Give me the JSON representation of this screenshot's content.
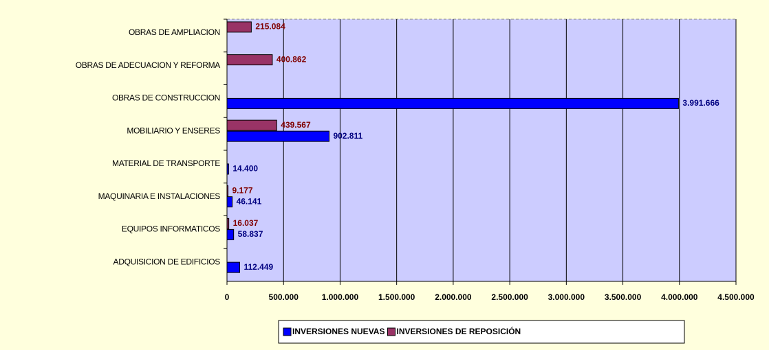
{
  "chart_data": {
    "type": "bar",
    "orientation": "horizontal",
    "categories": [
      "OBRAS DE AMPLIACION",
      "OBRAS DE ADECUACION Y REFORMA",
      "OBRAS DE CONSTRUCCION",
      "MOBILIARIO Y ENSERES",
      "MATERIAL DE TRANSPORTE",
      "MAQUINARIA E INSTALACIONES",
      "EQUIPOS INFORMATICOS",
      "ADQUISICION DE EDIFICIOS"
    ],
    "series": [
      {
        "name": "INVERSIONES NUEVAS",
        "color": "#0000ff",
        "label_color": "#000080",
        "values": [
          null,
          null,
          3991666,
          902811,
          14400,
          46141,
          58837,
          112449
        ],
        "value_labels": [
          null,
          null,
          "3.991.666",
          "902.811",
          "14.400",
          "46.141",
          "58.837",
          "112.449"
        ]
      },
      {
        "name": "INVERSIONES DE REPOSICIÓN",
        "color": "#993366",
        "label_color": "#800000",
        "values": [
          215084,
          400862,
          null,
          439567,
          null,
          9177,
          16037,
          null
        ],
        "value_labels": [
          "215.084",
          "400.862",
          null,
          "439.567",
          null,
          "9.177",
          "16.037",
          null
        ]
      }
    ],
    "xlim": [
      0,
      4500000
    ],
    "xticks": [
      0,
      {
        "value": 500000,
        "label": "500.000"
      },
      {
        "value": 1000000,
        "label": "1.000.000"
      },
      {
        "value": 1500000,
        "label": "1.500.000"
      },
      {
        "value": 2000000,
        "label": "2.000.000"
      },
      {
        "value": 2500000,
        "label": "2.500.000"
      },
      {
        "value": 3000000,
        "label": "3.000.000"
      },
      {
        "value": 3500000,
        "label": "3.500.000"
      },
      {
        "value": 4000000,
        "label": "4.000.000"
      },
      {
        "value": 4500000,
        "label": "4.500.000"
      }
    ],
    "grid": true,
    "legend": "bottom"
  }
}
